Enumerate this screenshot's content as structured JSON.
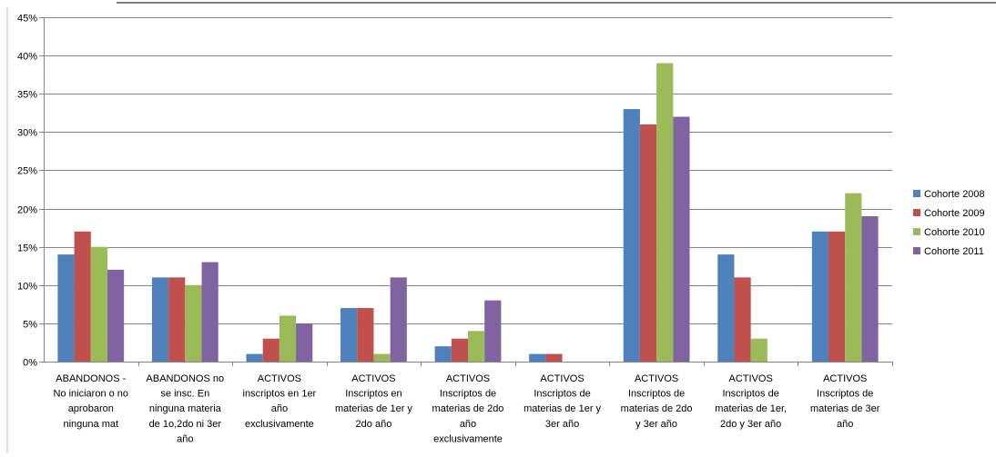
{
  "chart_data": {
    "type": "bar",
    "title": "",
    "xlabel": "",
    "ylabel": "",
    "ylim": [
      0,
      45
    ],
    "y_ticks": [
      "0%",
      "5%",
      "10%",
      "15%",
      "20%",
      "25%",
      "30%",
      "35%",
      "40%",
      "45%"
    ],
    "y_unit": "%",
    "grid": true,
    "legend_position": "right",
    "categories": [
      [
        "ABANDONOS -",
        "No iniciaron o no",
        "aprobaron",
        "ninguna mat"
      ],
      [
        "ABANDONOS no",
        "se insc. En",
        "ninguna materia",
        "de 1o,2do ni 3er",
        "año"
      ],
      [
        "ACTIVOS",
        "inscriptos en 1er",
        "año",
        "exclusivamente"
      ],
      [
        "ACTIVOS",
        "Inscriptos en",
        "materias de 1er y",
        "2do año"
      ],
      [
        "ACTIVOS",
        "Inscriptos de",
        "materias de  2do",
        "año",
        "exclusivamente"
      ],
      [
        "ACTIVOS",
        "Inscriptos de",
        "materias de 1er y",
        "3er año"
      ],
      [
        "ACTIVOS",
        "Inscriptos de",
        "materias de 2do",
        "y 3er año"
      ],
      [
        "ACTIVOS",
        "Inscriptos de",
        "materias de 1er,",
        "2do y 3er año"
      ],
      [
        "ACTIVOS",
        "Inscriptos de",
        "materias de  3er",
        "año"
      ]
    ],
    "series": [
      {
        "name": "Cohorte 2008",
        "color": "#4F81BD",
        "values": [
          14,
          11,
          1,
          7,
          2,
          1,
          33,
          14,
          17
        ]
      },
      {
        "name": "Cohorte 2009",
        "color": "#C0504D",
        "values": [
          17,
          11,
          3,
          7,
          3,
          1,
          31,
          11,
          17
        ]
      },
      {
        "name": "Cohorte 2010",
        "color": "#9BBB59",
        "values": [
          15,
          10,
          6,
          1,
          4,
          0,
          39,
          3,
          22
        ]
      },
      {
        "name": "Cohorte 2011",
        "color": "#8064A2",
        "values": [
          12,
          13,
          5,
          11,
          8,
          0,
          32,
          0,
          19
        ]
      }
    ]
  }
}
